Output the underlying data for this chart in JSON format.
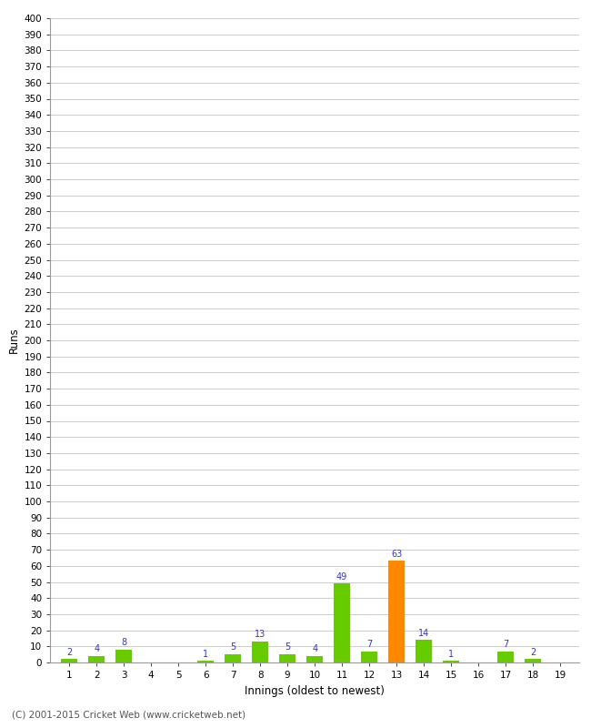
{
  "title": "",
  "xlabel": "Innings (oldest to newest)",
  "ylabel": "Runs",
  "innings": [
    1,
    2,
    3,
    4,
    5,
    6,
    7,
    8,
    9,
    10,
    11,
    12,
    13,
    14,
    15,
    16,
    17,
    18,
    19
  ],
  "values": [
    2,
    4,
    8,
    0,
    0,
    1,
    5,
    13,
    5,
    4,
    49,
    7,
    63,
    14,
    1,
    0,
    7,
    2,
    0
  ],
  "bar_colors": [
    "#66cc00",
    "#66cc00",
    "#66cc00",
    "#66cc00",
    "#66cc00",
    "#66cc00",
    "#66cc00",
    "#66cc00",
    "#66cc00",
    "#66cc00",
    "#66cc00",
    "#66cc00",
    "#ff8800",
    "#66cc00",
    "#66cc00",
    "#66cc00",
    "#66cc00",
    "#66cc00",
    "#66cc00"
  ],
  "label_color": "#3333cc",
  "background_color": "#ffffff",
  "plot_bg_color": "#ffffff",
  "grid_color": "#cccccc",
  "ylim": [
    0,
    400
  ],
  "ytick_step": 10,
  "footer": "(C) 2001-2015 Cricket Web (www.cricketweb.net)",
  "bar_width": 0.6
}
